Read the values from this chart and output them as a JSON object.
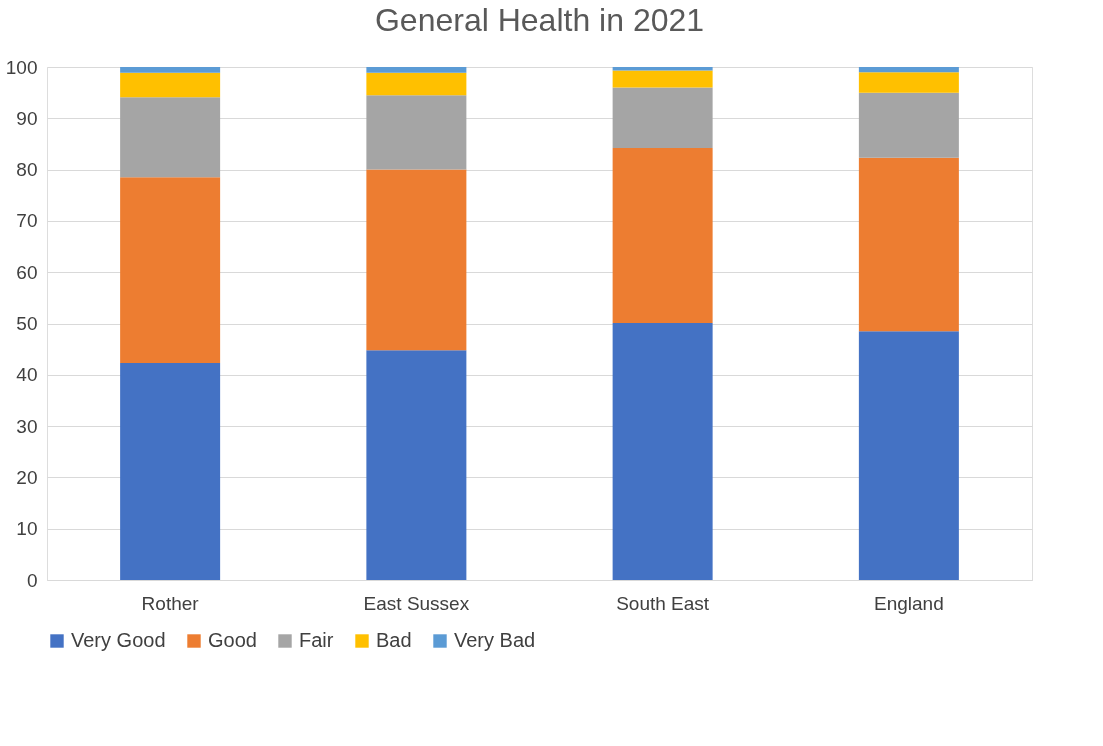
{
  "chart_data": {
    "type": "bar",
    "title": "General Health in 2021",
    "categories": [
      "Rother",
      "East Sussex",
      "South East",
      "England"
    ],
    "stacked": true,
    "ylim": [
      0,
      100
    ],
    "yticks": [
      0,
      10,
      20,
      30,
      40,
      50,
      60,
      70,
      80,
      90,
      100
    ],
    "grid": "y",
    "legend": "bottom",
    "series": [
      {
        "name": "Very Good",
        "color": "#4472c4",
        "values": [
          42.3,
          44.8,
          50.1,
          48.5
        ]
      },
      {
        "name": "Good",
        "color": "#ed7d31",
        "values": [
          36.2,
          35.2,
          34.1,
          33.8
        ]
      },
      {
        "name": "Fair",
        "color": "#a5a5a5",
        "values": [
          15.6,
          14.5,
          11.8,
          12.7
        ]
      },
      {
        "name": "Bad",
        "color": "#ffc000",
        "values": [
          4.8,
          4.4,
          3.3,
          4.0
        ]
      },
      {
        "name": "Very Bad",
        "color": "#5b9bd5",
        "values": [
          1.1,
          1.1,
          0.7,
          1.0
        ]
      }
    ]
  }
}
